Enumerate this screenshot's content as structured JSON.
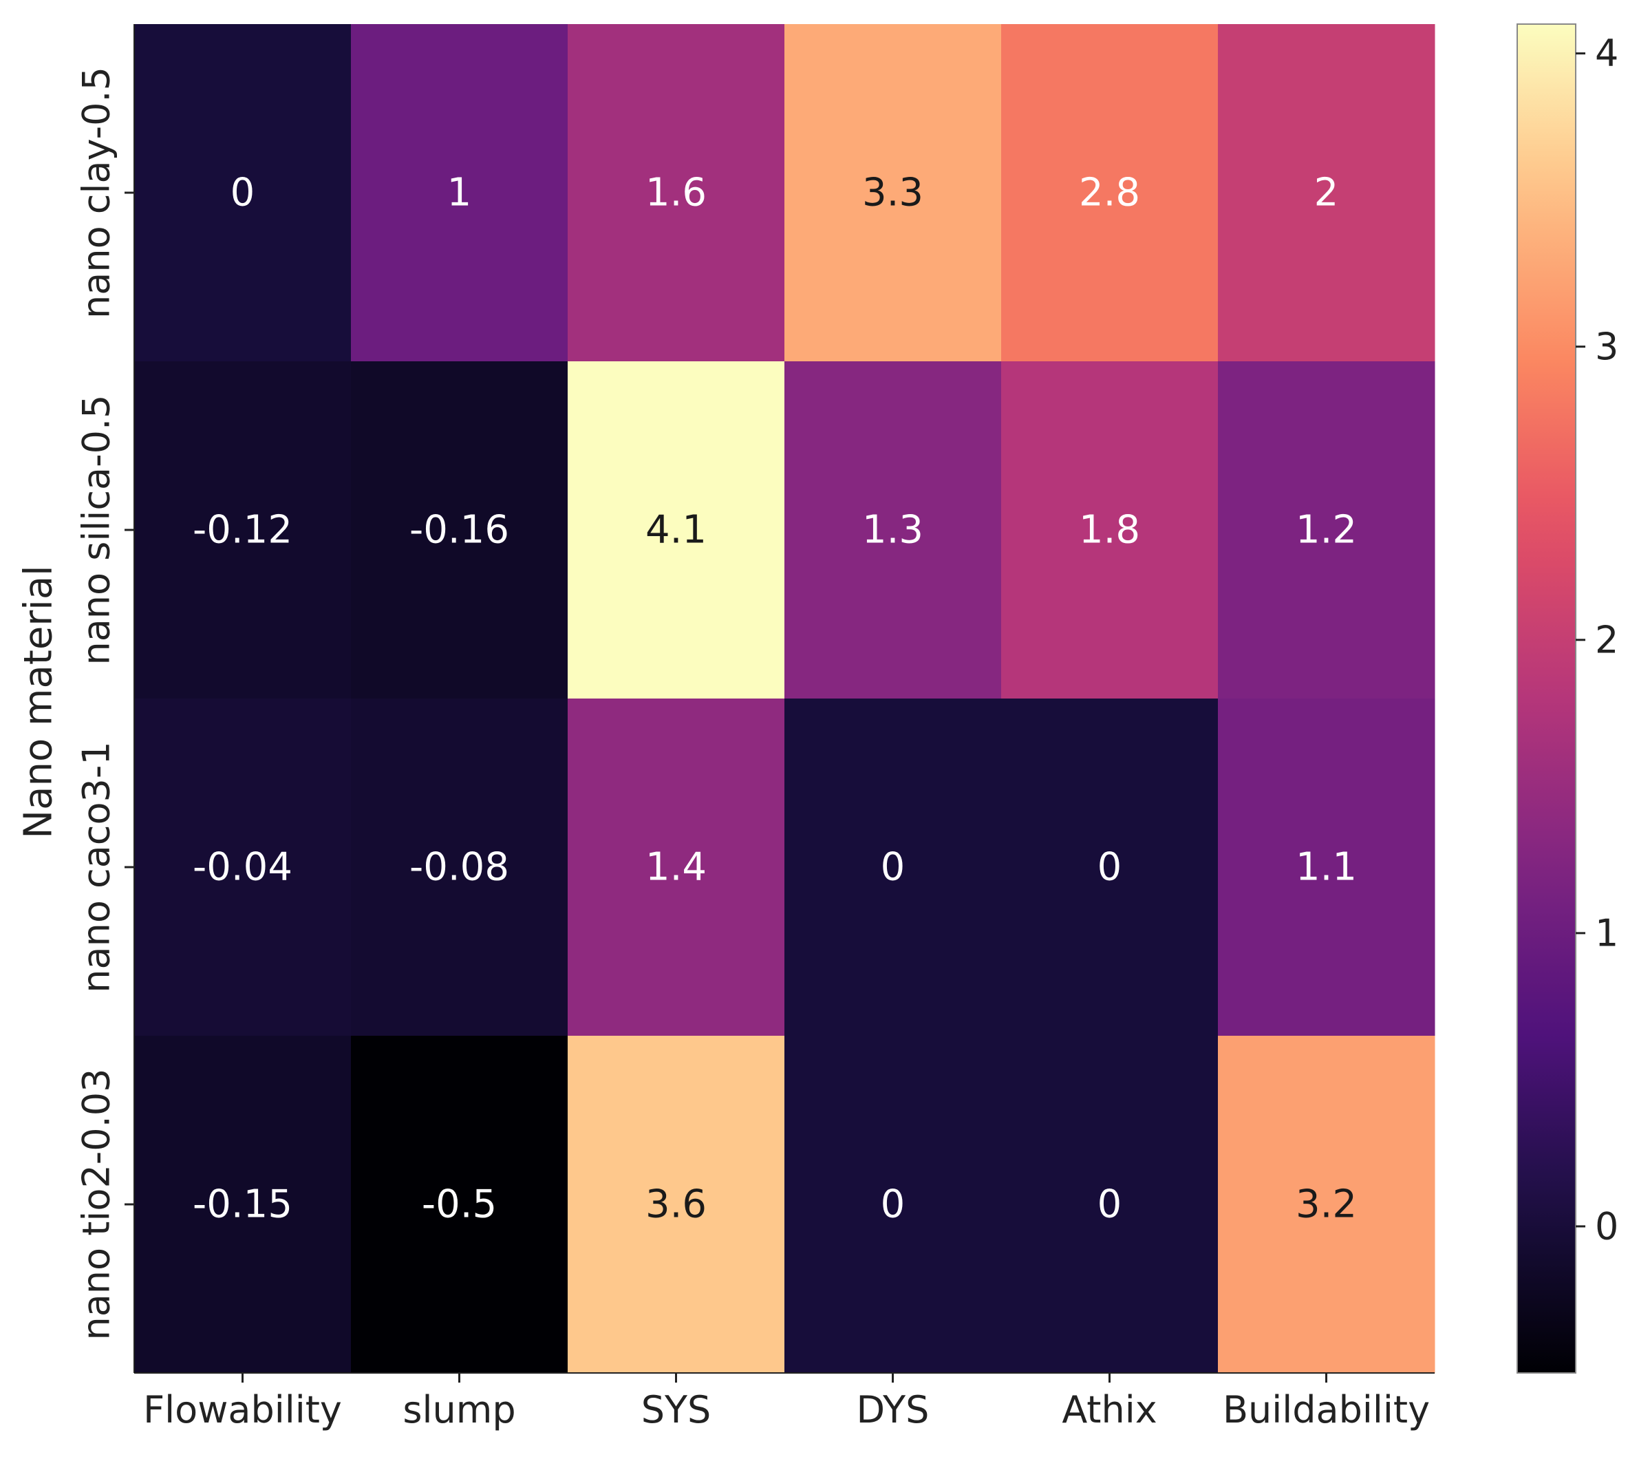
{
  "chart_data": {
    "type": "heatmap",
    "title": "",
    "xlabel": "",
    "ylabel": "Nano material",
    "x_categories": [
      "Flowability",
      "slump",
      "SYS",
      "DYS",
      "Athix",
      "Buildability"
    ],
    "y_categories": [
      "nano clay-0.5",
      "nano silica-0.5",
      "nano caco3-1",
      "nano tio2-0.03"
    ],
    "values": [
      [
        0,
        1,
        1.6,
        3.3,
        2.8,
        2
      ],
      [
        -0.12,
        -0.16,
        4.1,
        1.3,
        1.8,
        1.2
      ],
      [
        -0.04,
        -0.08,
        1.4,
        0,
        0,
        1.1
      ],
      [
        -0.15,
        -0.5,
        3.6,
        0,
        0,
        3.2
      ]
    ],
    "value_labels": [
      [
        "0",
        "1",
        "1.6",
        "3.3",
        "2.8",
        "2"
      ],
      [
        "-0.12",
        "-0.16",
        "4.1",
        "1.3",
        "1.8",
        "1.2"
      ],
      [
        "-0.04",
        "-0.08",
        "1.4",
        "0",
        "0",
        "1.1"
      ],
      [
        "-0.15",
        "-0.5",
        "3.6",
        "0",
        "0",
        "3.2"
      ]
    ],
    "colormap": "magma",
    "vmin": -0.5,
    "vmax": 4.1,
    "colorbar_ticks": [
      0,
      1,
      2,
      3,
      4
    ],
    "colorbar_tick_labels": [
      "0",
      "1",
      "2",
      "3",
      "4"
    ],
    "annotation_colors": {
      "dark": "#ffffff",
      "light": "#1a1a1a"
    }
  }
}
